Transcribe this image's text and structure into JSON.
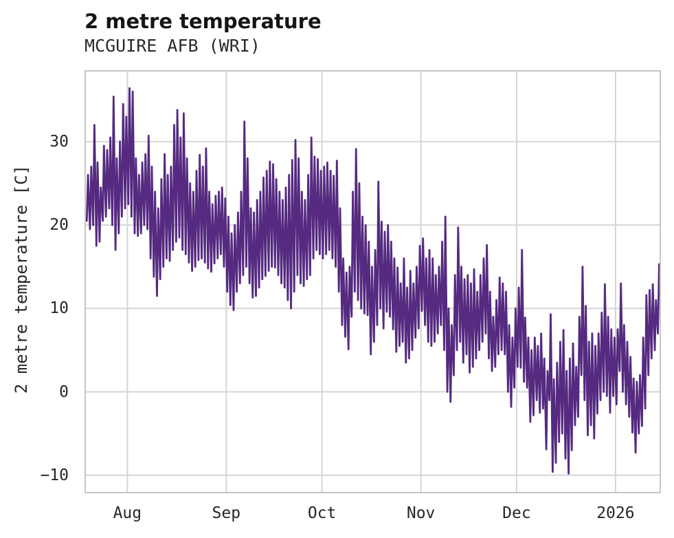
{
  "chart": {
    "title": "2 metre temperature",
    "subtitle": "MCGUIRE AFB (WRI)",
    "ylabel": "2 metre temperature [C]"
  },
  "chart_data": {
    "type": "line",
    "title": "2 metre temperature",
    "subtitle": "MCGUIRE AFB (WRI)",
    "xlabel": "",
    "ylabel": "2 metre temperature [C]",
    "grid": true,
    "legend": "none",
    "style": {
      "line_color": "#552a80",
      "grid_color": "#d5d5d5",
      "spine_color": "#c6c6c6",
      "text_color": "#262626",
      "background": "#ffffff"
    },
    "x_axis": {
      "note": "time axis; day offsets from first visible sample (~19 Jul 2025) to mid Jan 2026",
      "range_days": [
        0,
        179.8
      ],
      "tick_days": [
        13,
        44,
        74,
        105,
        135,
        166
      ],
      "tick_labels": [
        "Aug",
        "Sep",
        "Oct",
        "Nov",
        "Dec",
        "2026"
      ]
    },
    "y_axis": {
      "range": [
        -12,
        38.4
      ],
      "tick_values": [
        30,
        20,
        10,
        0,
        -10
      ],
      "tick_labels": [
        "30",
        "20",
        "10",
        "0",
        "−10"
      ]
    },
    "series": [
      {
        "name": "2 metre temperature [C]",
        "color": "#552a80",
        "sampling": "daily [min,max] pairs, one diurnal cycle per day",
        "daily_min_max": [
          [
            20.5,
            26
          ],
          [
            19.5,
            27
          ],
          [
            20,
            32
          ],
          [
            17.5,
            27.5
          ],
          [
            18,
            24.5
          ],
          [
            20.5,
            29.5
          ],
          [
            21,
            29
          ],
          [
            22,
            30.5
          ],
          [
            20,
            35.4
          ],
          [
            17,
            28
          ],
          [
            19,
            30
          ],
          [
            21,
            34.5
          ],
          [
            22,
            33
          ],
          [
            22.5,
            36.4
          ],
          [
            21,
            36
          ],
          [
            19,
            28
          ],
          [
            18.7,
            26
          ],
          [
            19,
            27.5
          ],
          [
            20,
            28.5
          ],
          [
            19.5,
            30.7
          ],
          [
            16,
            27
          ],
          [
            13.8,
            24
          ],
          [
            11.5,
            22
          ],
          [
            13.5,
            25.5
          ],
          [
            15,
            28.5
          ],
          [
            16,
            26
          ],
          [
            15.7,
            27
          ],
          [
            17,
            32
          ],
          [
            18,
            33.8
          ],
          [
            18.5,
            30.5
          ],
          [
            17,
            33.4
          ],
          [
            16.5,
            28
          ],
          [
            15.5,
            25
          ],
          [
            14.5,
            24
          ],
          [
            15,
            26.5
          ],
          [
            15.8,
            28.4
          ],
          [
            16,
            27
          ],
          [
            15.5,
            29.2
          ],
          [
            14.8,
            24
          ],
          [
            14.4,
            22.5
          ],
          [
            15.4,
            23.5
          ],
          [
            16,
            24
          ],
          [
            16.5,
            24.5
          ],
          [
            15,
            23.2
          ],
          [
            12,
            21
          ],
          [
            10.4,
            19
          ],
          [
            9.8,
            20
          ],
          [
            12,
            21.5
          ],
          [
            13,
            24
          ],
          [
            14,
            32.4
          ],
          [
            15,
            28
          ],
          [
            13,
            22
          ],
          [
            11.3,
            21.5
          ],
          [
            11.5,
            23
          ],
          [
            12.5,
            24
          ],
          [
            13.5,
            25.7
          ],
          [
            13.9,
            26.5
          ],
          [
            14.5,
            27.6
          ],
          [
            15,
            27.3
          ],
          [
            14.9,
            25.5
          ],
          [
            14,
            24
          ],
          [
            13,
            23
          ],
          [
            12.5,
            24.5
          ],
          [
            11,
            26
          ],
          [
            10,
            27.8
          ],
          [
            12,
            30.2
          ],
          [
            14,
            28
          ],
          [
            13,
            24
          ],
          [
            12.7,
            23
          ],
          [
            13.5,
            26
          ],
          [
            14,
            30.5
          ],
          [
            16,
            28.2
          ],
          [
            17,
            27.9
          ],
          [
            16.5,
            26.5
          ],
          [
            16,
            27
          ],
          [
            16.5,
            27.5
          ],
          [
            17,
            26.5
          ],
          [
            16,
            25.9
          ],
          [
            15,
            27.7
          ],
          [
            12,
            22
          ],
          [
            8,
            16
          ],
          [
            6.6,
            14.3
          ],
          [
            5.1,
            15
          ],
          [
            9,
            24
          ],
          [
            12,
            29.1
          ],
          [
            11,
            25
          ],
          [
            10,
            21
          ],
          [
            9.4,
            20
          ],
          [
            9.2,
            18
          ],
          [
            4.5,
            15
          ],
          [
            6,
            17
          ],
          [
            8,
            25.2
          ],
          [
            10,
            20.4
          ],
          [
            7.6,
            19.2
          ],
          [
            9.6,
            20
          ],
          [
            9,
            18
          ],
          [
            7.5,
            16
          ],
          [
            4.8,
            14.9
          ],
          [
            5.5,
            13
          ],
          [
            6,
            16
          ],
          [
            3.5,
            12.5
          ],
          [
            4,
            14.5
          ],
          [
            5,
            13
          ],
          [
            6.5,
            15
          ],
          [
            7.6,
            17.5
          ],
          [
            9.7,
            18.4
          ],
          [
            8,
            16
          ],
          [
            6,
            17
          ],
          [
            5.5,
            16
          ],
          [
            6,
            14
          ],
          [
            7,
            15
          ],
          [
            8,
            18
          ],
          [
            5,
            21
          ],
          [
            0,
            10
          ],
          [
            -1.2,
            8
          ],
          [
            2,
            14
          ],
          [
            5,
            19.7
          ],
          [
            6,
            15
          ],
          [
            3.5,
            13.5
          ],
          [
            4.5,
            14
          ],
          [
            2.3,
            13
          ],
          [
            3,
            14.7
          ],
          [
            4,
            12
          ],
          [
            5,
            14
          ],
          [
            6,
            16
          ],
          [
            7,
            17.6
          ],
          [
            4,
            12
          ],
          [
            2.5,
            9
          ],
          [
            3,
            11
          ],
          [
            4.5,
            13.7
          ],
          [
            5,
            13
          ],
          [
            4.5,
            12
          ],
          [
            0,
            8
          ],
          [
            -1.8,
            6.5
          ],
          [
            0.5,
            10
          ],
          [
            3,
            12.5
          ],
          [
            2.9,
            17
          ],
          [
            1.2,
            8.9
          ],
          [
            0.5,
            6.5
          ],
          [
            -3.6,
            5
          ],
          [
            -2.8,
            6.5
          ],
          [
            -1,
            5.5
          ],
          [
            -2.5,
            7
          ],
          [
            -2,
            4
          ],
          [
            -6.9,
            2.5
          ],
          [
            -1,
            9.3
          ],
          [
            -9.6,
            1.5
          ],
          [
            -8.5,
            3.5
          ],
          [
            -6,
            6
          ],
          [
            -5,
            7.4
          ],
          [
            -8,
            2.5
          ],
          [
            -9.8,
            4
          ],
          [
            -7,
            5.8
          ],
          [
            -4,
            3
          ],
          [
            -3,
            9
          ],
          [
            2,
            15
          ],
          [
            -1,
            10.3
          ],
          [
            -5.2,
            6
          ],
          [
            -4,
            7
          ],
          [
            -5.6,
            5.5
          ],
          [
            -2.6,
            7
          ],
          [
            -1,
            9.5
          ],
          [
            0,
            12.9
          ],
          [
            -0.5,
            9
          ],
          [
            -2.5,
            7.5
          ],
          [
            -0.5,
            6.5
          ],
          [
            -1.5,
            7.5
          ],
          [
            2.5,
            13
          ],
          [
            0,
            8
          ],
          [
            -1.5,
            6
          ],
          [
            -3,
            4.2
          ],
          [
            -4.9,
            1.6
          ],
          [
            -7.3,
            1.2
          ],
          [
            -5,
            2
          ],
          [
            -4.1,
            6.5
          ],
          [
            -2,
            11.6
          ],
          [
            2,
            12.2
          ],
          [
            4,
            12.9
          ],
          [
            5,
            11
          ],
          [
            7,
            15.3
          ]
        ]
      }
    ]
  }
}
